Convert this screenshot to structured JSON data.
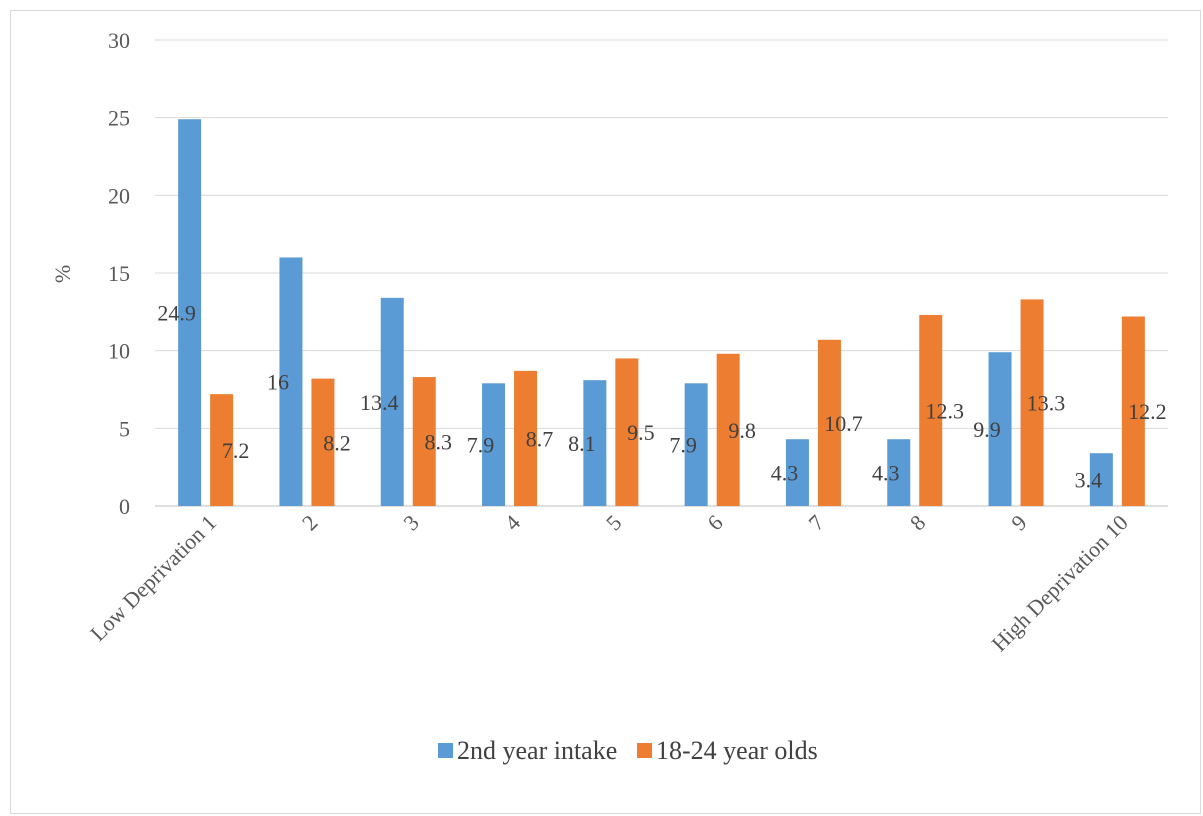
{
  "chart_data": {
    "type": "bar",
    "title": "",
    "xlabel": "",
    "ylabel": "%",
    "ylim": [
      0,
      30
    ],
    "yticks": [
      0,
      5,
      10,
      15,
      20,
      25,
      30
    ],
    "grid": true,
    "legend_position": "bottom",
    "categories": [
      "Low Deprivation 1",
      "2",
      "3",
      "4",
      "5",
      "6",
      "7",
      "8",
      "9",
      "High Deprivation 10"
    ],
    "series": [
      {
        "name": "2nd year intake",
        "color": "#5b9bd5",
        "values": [
          24.9,
          16,
          13.4,
          7.9,
          8.1,
          7.9,
          4.3,
          4.3,
          9.9,
          3.4
        ]
      },
      {
        "name": "18-24 year olds",
        "color": "#ed7d31",
        "values": [
          7.2,
          8.2,
          8.3,
          8.7,
          9.5,
          9.8,
          10.7,
          12.3,
          13.3,
          12.2
        ]
      }
    ]
  }
}
